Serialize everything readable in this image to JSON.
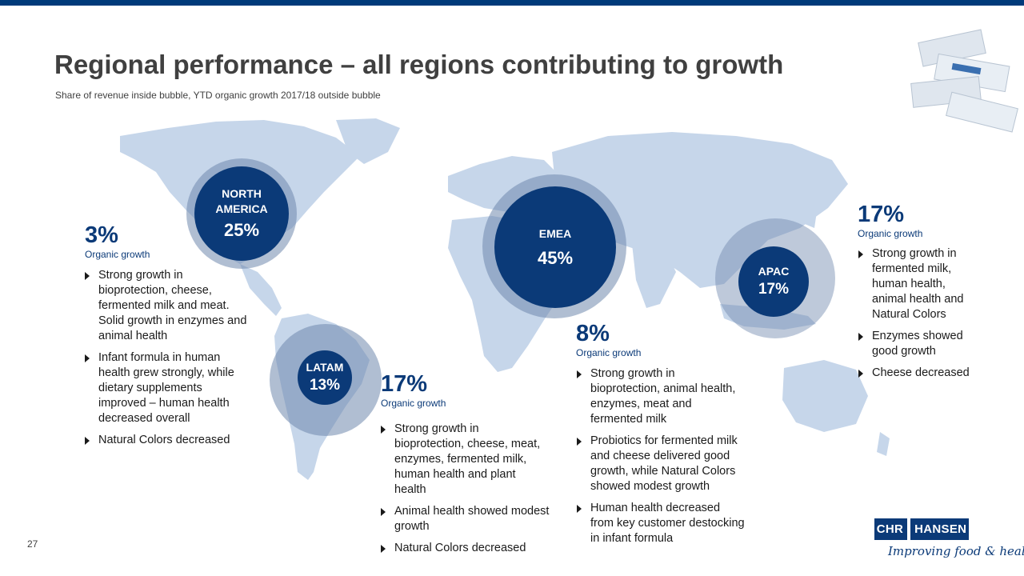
{
  "slide": {
    "title": "Regional performance – all regions contributing to growth",
    "subtitle": "Share of revenue inside bubble, YTD organic growth 2017/18 outside bubble",
    "page_number": "27"
  },
  "bubbles": {
    "north_america": {
      "name_line1": "NORTH",
      "name_line2": "AMERICA",
      "share": "25%"
    },
    "latam": {
      "name": "LATAM",
      "share": "13%"
    },
    "emea": {
      "name": "EMEA",
      "share": "45%"
    },
    "apac": {
      "name": "APAC",
      "share": "17%"
    }
  },
  "regions": {
    "north_america": {
      "growth": "3%",
      "growth_label": "Organic growth",
      "bullets": [
        "Strong growth in bioprotection, cheese, fermented milk and meat. Solid growth in enzymes and animal health",
        "Infant formula in human health grew strongly, while dietary supplements improved – human health decreased overall",
        "Natural Colors decreased"
      ]
    },
    "latam": {
      "growth": "17%",
      "growth_label": "Organic growth",
      "bullets": [
        "Strong growth in bioprotection, cheese, meat, enzymes, fermented milk, human health and plant health",
        "Animal health showed modest growth",
        "Natural Colors decreased"
      ]
    },
    "emea": {
      "growth": "8%",
      "growth_label": "Organic growth",
      "bullets": [
        "Strong growth in bioprotection, animal health, enzymes, meat and fermented milk",
        "Probiotics for fermented milk and cheese delivered good growth, while Natural Colors showed modest growth",
        "Human health decreased from key customer destocking in infant formula"
      ]
    },
    "apac": {
      "growth": "17%",
      "growth_label": "Organic growth",
      "bullets": [
        "Strong growth in fermented milk, human health, animal health and Natural Colors",
        "Enzymes showed good growth",
        "Cheese decreased"
      ]
    }
  },
  "logo": {
    "left": "CHR",
    "right": "HANSEN",
    "tagline": "Improving food & health"
  },
  "colors": {
    "brand_dark": "#0b3a78",
    "map_fill": "#c5d5e8",
    "halo": "#6f88ad",
    "top_bar": "#003a7a"
  }
}
